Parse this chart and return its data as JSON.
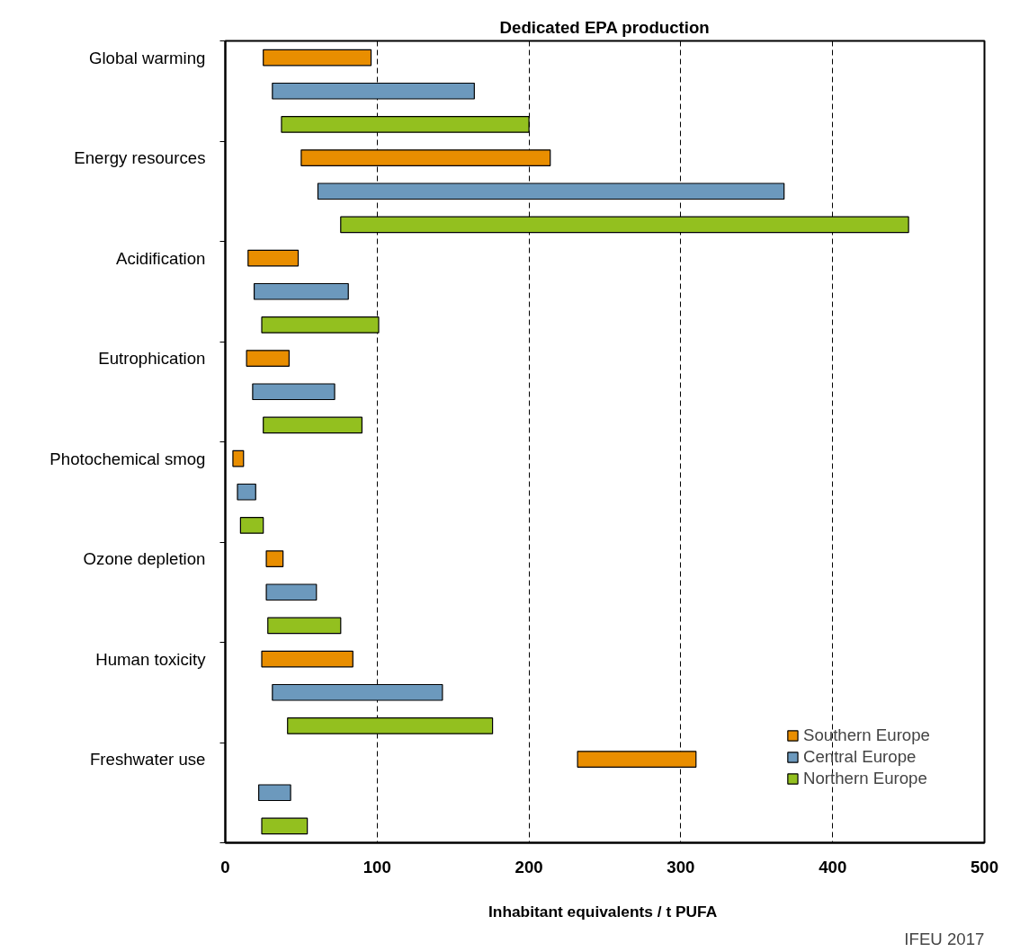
{
  "chart_data": {
    "type": "bar",
    "orientation": "horizontal",
    "title": "Dedicated EPA production",
    "xlabel": "Inhabitant equivalents  / t PUFA",
    "annotations": [
      "IFEU 2017"
    ],
    "categories": [
      "Global warming",
      "Energy resources",
      "Acidification",
      "Eutrophication",
      "Photochemical smog",
      "Ozone depletion",
      "Human toxicity",
      "Freshwater use"
    ],
    "series": [
      {
        "name": "Southern Europe",
        "color": "#e98e00",
        "base": [
          25,
          50,
          15,
          14,
          5,
          27,
          24,
          232
        ],
        "values": [
          71,
          164,
          33,
          28,
          7,
          11,
          60,
          78
        ]
      },
      {
        "name": "Central Europe",
        "color": "#6c99bd",
        "base": [
          31,
          61,
          19,
          18,
          8,
          27,
          31,
          22
        ],
        "values": [
          133,
          307,
          62,
          54,
          12,
          33,
          112,
          21
        ]
      },
      {
        "name": "Northern Europe",
        "color": "#93c01f",
        "base": [
          37,
          76,
          24,
          25,
          10,
          28,
          41,
          24
        ],
        "values": [
          163,
          374,
          77,
          65,
          15,
          48,
          135,
          30
        ]
      }
    ],
    "xlim": [
      0,
      500
    ],
    "xticks": [
      0,
      100,
      200,
      300,
      400,
      500
    ],
    "grid": "x",
    "legend": "bottom right"
  }
}
